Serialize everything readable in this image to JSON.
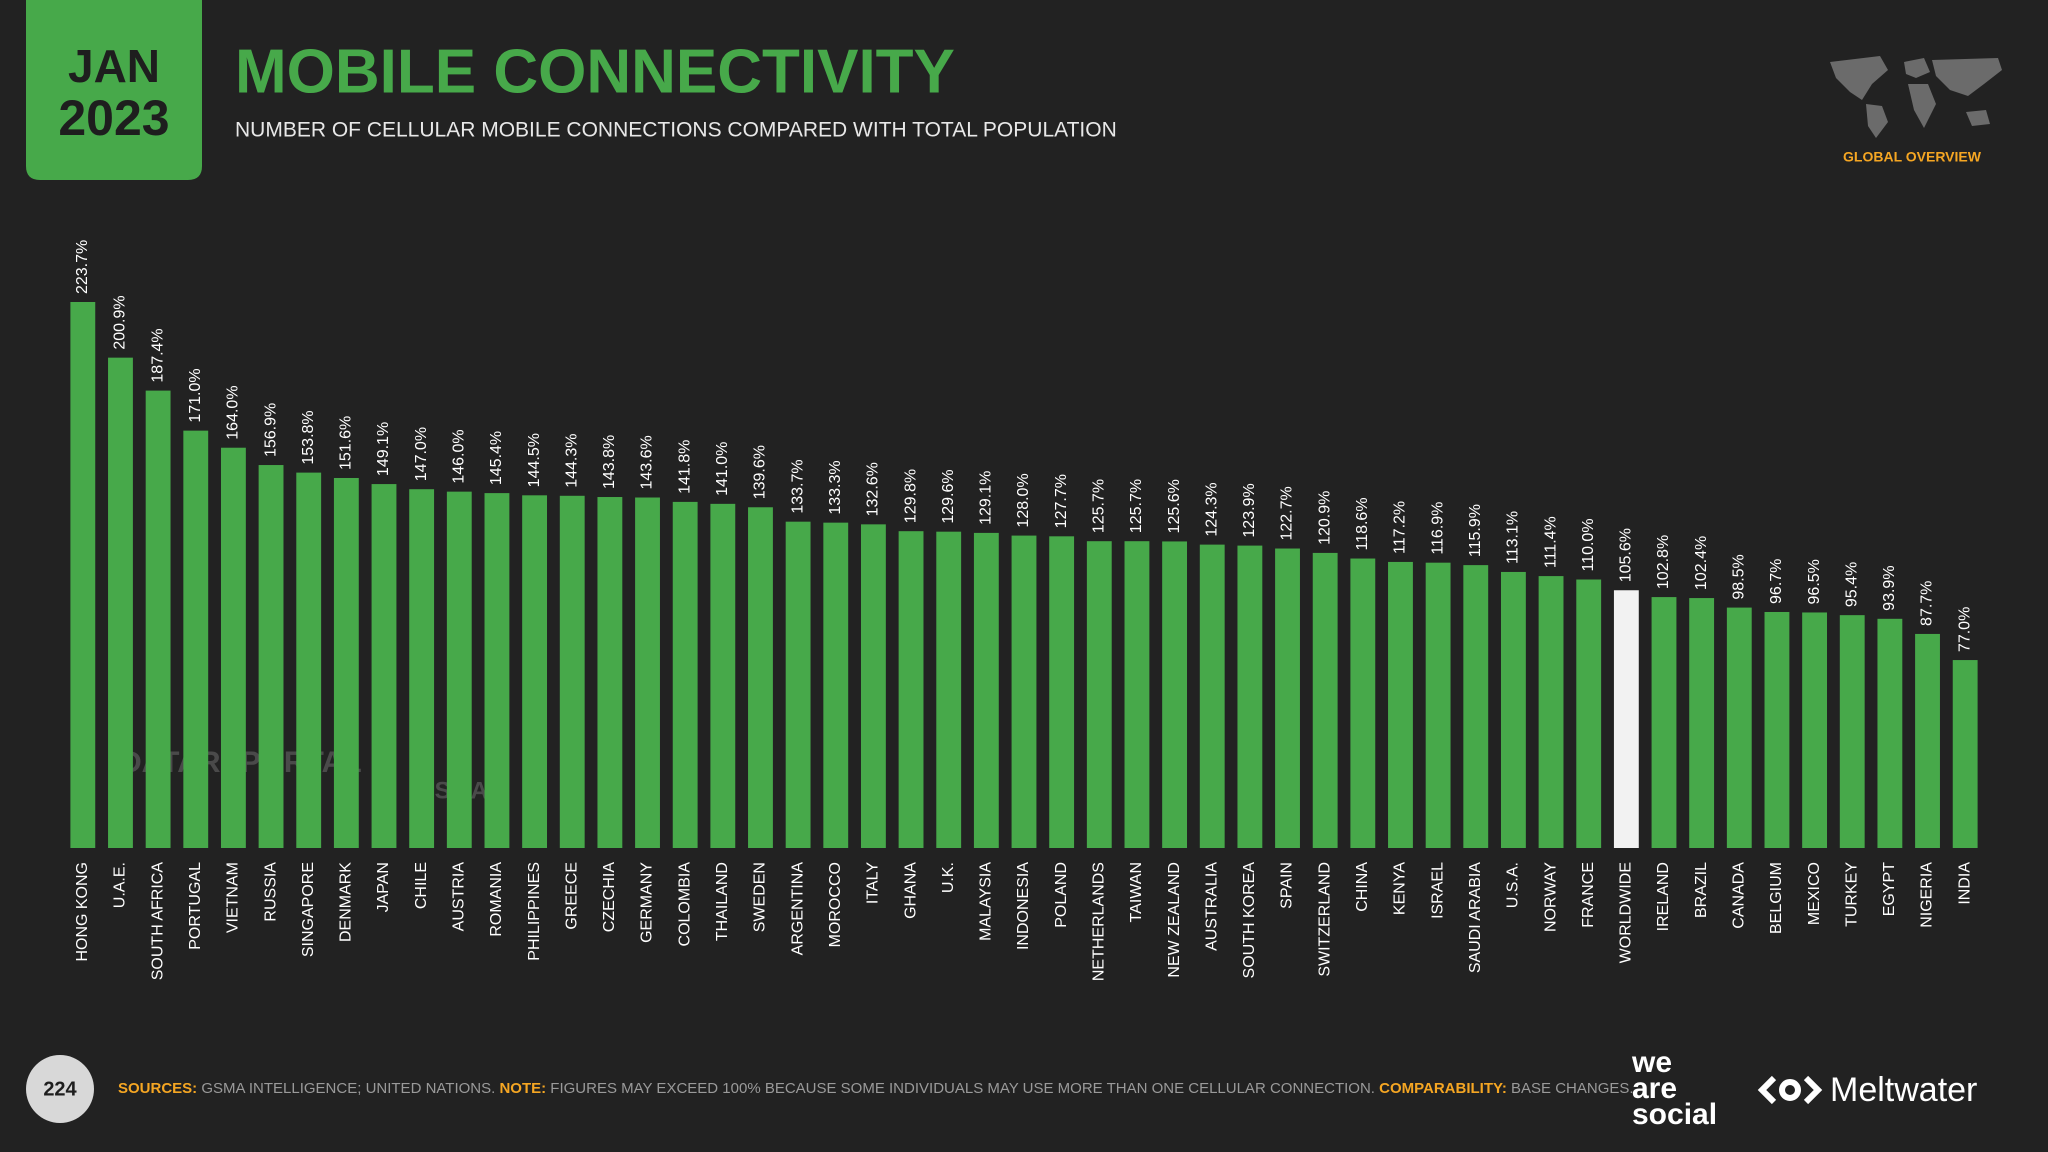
{
  "header": {
    "month": "JAN",
    "year": "2023",
    "badge": "GLOBAL OVERVIEW"
  },
  "chart_data": {
    "type": "bar",
    "title": "MOBILE CONNECTIVITY",
    "subtitle": "NUMBER OF CELLULAR MOBILE CONNECTIONS COMPARED WITH TOTAL POPULATION",
    "categories": [
      "HONG KONG",
      "U.A.E.",
      "SOUTH AFRICA",
      "PORTUGAL",
      "VIETNAM",
      "RUSSIA",
      "SINGAPORE",
      "DENMARK",
      "JAPAN",
      "CHILE",
      "AUSTRIA",
      "ROMANIA",
      "PHILIPPINES",
      "GREECE",
      "CZECHIA",
      "GERMANY",
      "COLOMBIA",
      "THAILAND",
      "SWEDEN",
      "ARGENTINA",
      "MOROCCO",
      "ITALY",
      "GHANA",
      "U.K.",
      "MALAYSIA",
      "INDONESIA",
      "POLAND",
      "NETHERLANDS",
      "TAIWAN",
      "NEW ZEALAND",
      "AUSTRALIA",
      "SOUTH KOREA",
      "SPAIN",
      "SWITZERLAND",
      "CHINA",
      "KENYA",
      "ISRAEL",
      "SAUDI ARABIA",
      "U.S.A.",
      "NORWAY",
      "FRANCE",
      "WORLDWIDE",
      "IRELAND",
      "BRAZIL",
      "CANADA",
      "BELGIUM",
      "MEXICO",
      "TURKEY",
      "EGYPT",
      "NIGERIA",
      "INDIA"
    ],
    "values": [
      223.7,
      200.9,
      187.4,
      171.0,
      164.0,
      156.9,
      153.8,
      151.6,
      149.1,
      147.0,
      146.0,
      145.4,
      144.5,
      144.3,
      143.8,
      143.6,
      141.8,
      141.0,
      139.6,
      133.7,
      133.3,
      132.6,
      129.8,
      129.6,
      129.1,
      128.0,
      127.7,
      125.7,
      125.7,
      125.6,
      124.3,
      123.9,
      122.7,
      120.9,
      118.6,
      117.2,
      116.9,
      115.9,
      113.1,
      111.4,
      110.0,
      105.6,
      102.8,
      102.4,
      98.5,
      96.7,
      96.5,
      95.4,
      93.9,
      87.7,
      77.0
    ],
    "value_labels": [
      "223.7%",
      "200.9%",
      "187.4%",
      "171.0%",
      "164.0%",
      "156.9%",
      "153.8%",
      "151.6%",
      "149.1%",
      "147.0%",
      "146.0%",
      "145.4%",
      "144.5%",
      "144.3%",
      "143.8%",
      "143.6%",
      "141.8%",
      "141.0%",
      "139.6%",
      "133.7%",
      "133.3%",
      "132.6%",
      "129.8%",
      "129.6%",
      "129.1%",
      "128.0%",
      "127.7%",
      "125.7%",
      "125.7%",
      "125.6%",
      "124.3%",
      "123.9%",
      "122.7%",
      "120.9%",
      "118.6%",
      "117.2%",
      "116.9%",
      "115.9%",
      "113.1%",
      "111.4%",
      "110.0%",
      "105.6%",
      "102.8%",
      "102.4%",
      "98.5%",
      "96.7%",
      "96.5%",
      "95.4%",
      "93.9%",
      "87.7%",
      "77.0%"
    ],
    "colors": [
      "#47a94a",
      "#47a94a",
      "#47a94a",
      "#47a94a",
      "#47a94a",
      "#47a94a",
      "#47a94a",
      "#47a94a",
      "#47a94a",
      "#47a94a",
      "#47a94a",
      "#47a94a",
      "#47a94a",
      "#47a94a",
      "#47a94a",
      "#47a94a",
      "#47a94a",
      "#47a94a",
      "#47a94a",
      "#47a94a",
      "#47a94a",
      "#47a94a",
      "#47a94a",
      "#47a94a",
      "#47a94a",
      "#47a94a",
      "#47a94a",
      "#47a94a",
      "#47a94a",
      "#47a94a",
      "#47a94a",
      "#47a94a",
      "#47a94a",
      "#47a94a",
      "#47a94a",
      "#47a94a",
      "#47a94a",
      "#47a94a",
      "#47a94a",
      "#47a94a",
      "#47a94a",
      "#f2f2f2",
      "#47a94a",
      "#47a94a",
      "#47a94a",
      "#47a94a",
      "#47a94a",
      "#47a94a",
      "#47a94a",
      "#47a94a",
      "#47a94a"
    ],
    "watermarks": [
      "DATAREPORTAL",
      "GSMA"
    ]
  },
  "footer": {
    "page": "224",
    "sources_label": "SOURCES:",
    "sources": " GSMA INTELLIGENCE; UNITED NATIONS. ",
    "note_label": "NOTE:",
    "note": " FIGURES MAY EXCEED 100% BECAUSE SOME INDIVIDUALS MAY USE MORE THAN ONE CELLULAR CONNECTION. ",
    "comparability_label": "COMPARABILITY:",
    "comparability": " BASE CHANGES.",
    "logo_1": [
      "we",
      "are",
      "social"
    ],
    "logo_2": "Meltwater"
  }
}
